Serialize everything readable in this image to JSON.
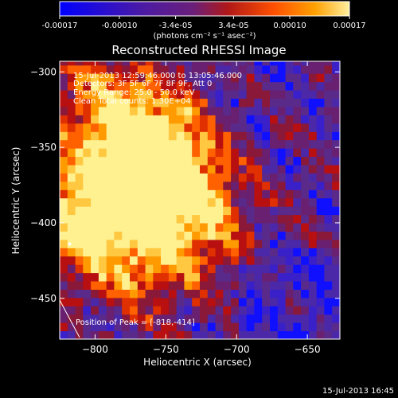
{
  "colorbar": {
    "ticks": [
      {
        "value": -0.00017,
        "label": "-0.00017"
      },
      {
        "value": -0.0001,
        "label": "-0.00010"
      },
      {
        "value": -3.4e-05,
        "label": "-3.4e-05"
      },
      {
        "value": 3.4e-05,
        "label": "3.4e-05"
      },
      {
        "value": 0.0001,
        "label": "0.00010"
      },
      {
        "value": 0.00017,
        "label": "0.00017"
      }
    ],
    "range": [
      -0.00017,
      0.00017
    ],
    "unit_label": "(photons cm⁻² s⁻¹ asec⁻²)",
    "colors": [
      "#0000ff",
      "#4a1aa6",
      "#6a1f7a",
      "#b01818",
      "#ff5000",
      "#ffa000",
      "#fff0a0"
    ]
  },
  "chart_data": {
    "type": "heatmap",
    "title": "Reconstructed RHESSI Image",
    "xlabel": "Heliocentric X (arcsec)",
    "ylabel": "Heliocentric Y (arcsec)",
    "xlim": [
      -825,
      -627
    ],
    "ylim": [
      -477,
      -293
    ],
    "x_ticks": [
      -800,
      -750,
      -700,
      -650
    ],
    "y_ticks": [
      -300,
      -350,
      -400,
      -450
    ],
    "info_lines": [
      "15-Jul-2013 12:59:46.000 to 13:05:46.000",
      "Detectors: 3F 5F 6F 7F 8F 9F, Att 0",
      "Energy Range: 25.0 - 50.0 keV",
      "Clean    Total counts: 1.30E+04"
    ],
    "peak_label": "Position of Peak = [-818,-414]",
    "peak": {
      "x": -818,
      "y": -414
    },
    "bright_regions": [
      {
        "x": -805,
        "y": -395,
        "level": 0.92
      },
      {
        "x": -755,
        "y": -360,
        "level": 0.85
      },
      {
        "x": -790,
        "y": -330,
        "level": 0.6
      },
      {
        "x": -730,
        "y": -400,
        "level": 0.55
      },
      {
        "x": -770,
        "y": -425,
        "level": 0.45
      }
    ]
  },
  "footer": {
    "timestamp": "15-Jul-2013 16:45"
  }
}
